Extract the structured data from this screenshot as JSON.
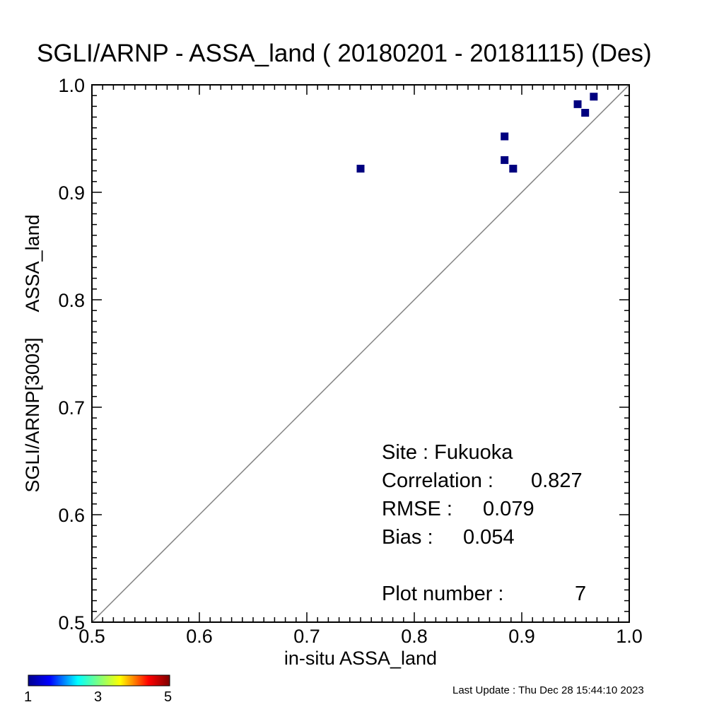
{
  "title": "SGLI/ARNP - ASSA_land ( 20180201 - 20181115) (Des)",
  "chart_data": {
    "type": "scatter",
    "title": "SGLI/ARNP - ASSA_land ( 20180201 - 20181115) (Des)",
    "xlabel": "in-situ ASSA_land",
    "ylabel": "SGLI/ARNP[3003]     ASSA_land",
    "xlim": [
      0.5,
      1.0
    ],
    "ylim": [
      0.5,
      1.0
    ],
    "xticks": [
      "0.5",
      "0.6",
      "0.7",
      "0.8",
      "0.9",
      "1.0"
    ],
    "yticks": [
      "0.5",
      "0.6",
      "0.7",
      "0.8",
      "0.9",
      "1.0"
    ],
    "points": [
      {
        "x": 0.75,
        "y": 0.922
      },
      {
        "x": 0.884,
        "y": 0.952
      },
      {
        "x": 0.884,
        "y": 0.93
      },
      {
        "x": 0.892,
        "y": 0.922
      },
      {
        "x": 0.952,
        "y": 0.982
      },
      {
        "x": 0.959,
        "y": 0.974
      },
      {
        "x": 0.967,
        "y": 0.989
      }
    ],
    "point_color": "#00007f",
    "reference_line": "1:1",
    "grid": false
  },
  "stats": {
    "site": "Site : Fukuoka",
    "correlation_label": "Correlation :",
    "correlation_value": "0.827",
    "rmse_label": "RMSE :",
    "rmse_value": "0.079",
    "bias_label": "Bias :",
    "bias_value": "0.054",
    "plot_number_label": "Plot number :",
    "plot_number_value": "7"
  },
  "colorbar": {
    "min_label": "1",
    "mid_label": "3",
    "max_label": "5"
  },
  "footer": "Last Update : Thu Dec 28 15:44:10 2023"
}
